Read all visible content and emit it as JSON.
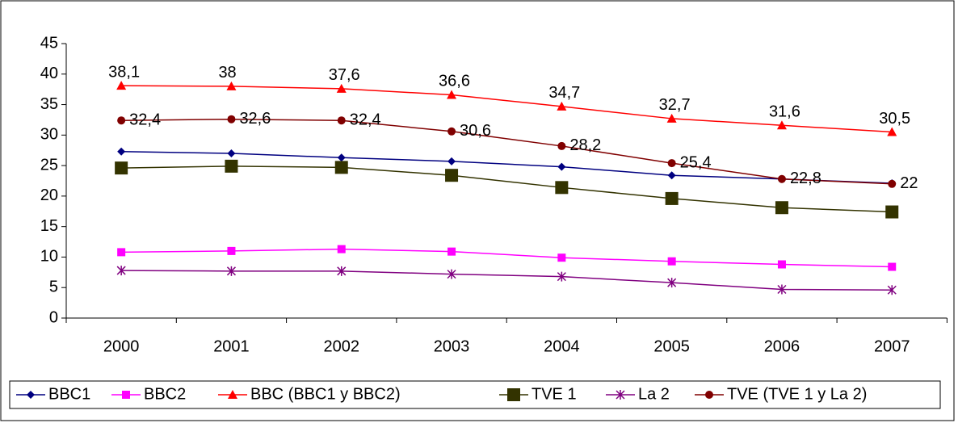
{
  "chart_data": {
    "type": "line",
    "categories": [
      "2000",
      "2001",
      "2002",
      "2003",
      "2004",
      "2005",
      "2006",
      "2007"
    ],
    "ylim": [
      0,
      45
    ],
    "yticks": [
      0,
      5,
      10,
      15,
      20,
      25,
      30,
      35,
      40,
      45
    ],
    "legend": "bottom",
    "series": [
      {
        "name": "BBC1",
        "color": "#000080",
        "marker": "diamond",
        "values": [
          27.3,
          27.0,
          26.3,
          25.7,
          24.8,
          23.4,
          22.8,
          22.1
        ]
      },
      {
        "name": "BBC2",
        "color": "#ff00ff",
        "marker": "square",
        "values": [
          10.8,
          11.0,
          11.3,
          10.9,
          9.9,
          9.3,
          8.8,
          8.4
        ]
      },
      {
        "name": "BBC (BBC1 y BBC2)",
        "color": "#ff0000",
        "marker": "triangle",
        "values": [
          38.1,
          38,
          37.6,
          36.6,
          34.7,
          32.7,
          31.6,
          30.5
        ],
        "value_labels": [
          "38,1",
          "38",
          "37,6",
          "36,6",
          "34,7",
          "32,7",
          "31,6",
          "30,5"
        ]
      },
      {
        "name": "TVE 1",
        "color": "#333300",
        "marker": "bigsquare",
        "values": [
          24.6,
          24.9,
          24.7,
          23.4,
          21.4,
          19.6,
          18.1,
          17.4
        ]
      },
      {
        "name": "La 2",
        "color": "#800080",
        "marker": "star",
        "values": [
          7.8,
          7.7,
          7.7,
          7.2,
          6.8,
          5.8,
          4.7,
          4.6
        ]
      },
      {
        "name": "TVE (TVE 1 y La 2)",
        "color": "#800000",
        "marker": "circle",
        "values": [
          32.4,
          32.6,
          32.4,
          30.6,
          28.2,
          25.4,
          22.8,
          22
        ],
        "value_labels": [
          "32,4",
          "32,6",
          "32,4",
          "30,6",
          "28,2",
          "25,4",
          "22,8",
          "22"
        ]
      }
    ]
  }
}
